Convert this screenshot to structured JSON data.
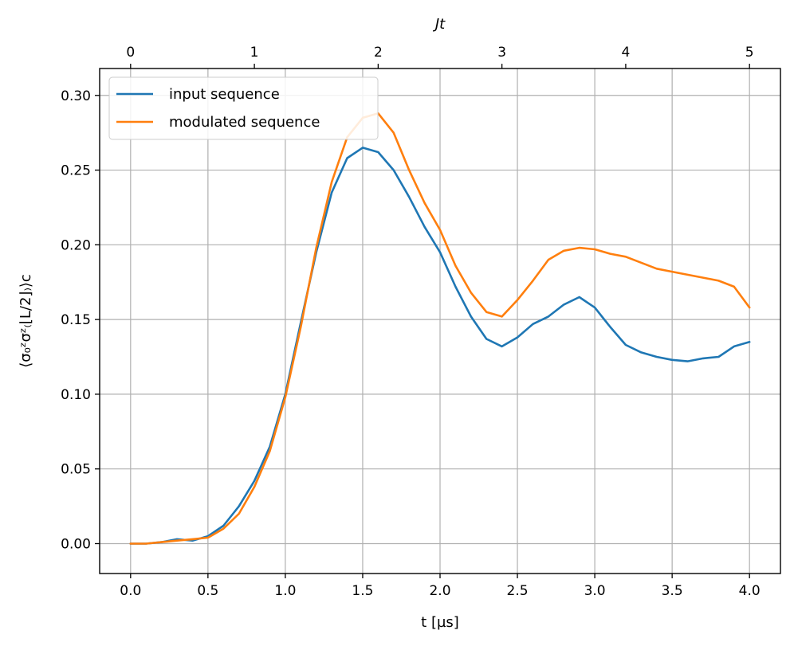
{
  "chart_data": {
    "type": "line",
    "xlabel": "t [µs]",
    "ylabel": "⟨σ₀ᶻσᶻ₍⌊L/2⌋₎⟩c",
    "top_xlabel": "Jt",
    "xlim": [
      -0.2,
      4.2
    ],
    "ylim": [
      -0.02,
      0.318
    ],
    "top_xlim": [
      -0.25,
      5.25
    ],
    "x_ticks": [
      0.0,
      0.5,
      1.0,
      1.5,
      2.0,
      2.5,
      3.0,
      3.5,
      4.0
    ],
    "x_tick_labels": [
      "0.0",
      "0.5",
      "1.0",
      "1.5",
      "2.0",
      "2.5",
      "3.0",
      "3.5",
      "4.0"
    ],
    "y_ticks": [
      0.0,
      0.05,
      0.1,
      0.15,
      0.2,
      0.25,
      0.3
    ],
    "y_tick_labels": [
      "0.00",
      "0.05",
      "0.10",
      "0.15",
      "0.20",
      "0.25",
      "0.30"
    ],
    "top_x_ticks": [
      0,
      1,
      2,
      3,
      4,
      5
    ],
    "top_x_tick_labels": [
      "0",
      "1",
      "2",
      "3",
      "4",
      "5"
    ],
    "grid": true,
    "legend_position": "top-left",
    "series": [
      {
        "name": "input sequence",
        "color": "#1f77b4",
        "x": [
          0.0,
          0.1,
          0.2,
          0.3,
          0.4,
          0.5,
          0.6,
          0.7,
          0.8,
          0.9,
          1.0,
          1.1,
          1.2,
          1.3,
          1.4,
          1.5,
          1.6,
          1.7,
          1.8,
          1.9,
          2.0,
          2.1,
          2.2,
          2.3,
          2.4,
          2.5,
          2.6,
          2.7,
          2.8,
          2.9,
          3.0,
          3.1,
          3.2,
          3.3,
          3.4,
          3.5,
          3.6,
          3.7,
          3.8,
          3.9,
          4.0
        ],
        "y": [
          0.0,
          0.0,
          0.001,
          0.003,
          0.002,
          0.005,
          0.012,
          0.025,
          0.042,
          0.065,
          0.1,
          0.148,
          0.195,
          0.235,
          0.258,
          0.265,
          0.262,
          0.25,
          0.232,
          0.212,
          0.195,
          0.172,
          0.152,
          0.137,
          0.132,
          0.138,
          0.147,
          0.152,
          0.16,
          0.165,
          0.158,
          0.145,
          0.133,
          0.128,
          0.125,
          0.123,
          0.122,
          0.124,
          0.125,
          0.132,
          0.135
        ]
      },
      {
        "name": "modulated sequence",
        "color": "#ff7f0e",
        "x": [
          0.0,
          0.1,
          0.2,
          0.3,
          0.4,
          0.5,
          0.6,
          0.7,
          0.8,
          0.9,
          1.0,
          1.1,
          1.2,
          1.3,
          1.4,
          1.5,
          1.6,
          1.7,
          1.8,
          1.9,
          2.0,
          2.1,
          2.2,
          2.3,
          2.4,
          2.5,
          2.6,
          2.7,
          2.8,
          2.9,
          3.0,
          3.1,
          3.2,
          3.3,
          3.4,
          3.5,
          3.6,
          3.7,
          3.8,
          3.9,
          4.0
        ],
        "y": [
          0.0,
          0.0,
          0.001,
          0.002,
          0.003,
          0.004,
          0.01,
          0.02,
          0.038,
          0.062,
          0.098,
          0.145,
          0.198,
          0.242,
          0.272,
          0.285,
          0.288,
          0.275,
          0.25,
          0.228,
          0.21,
          0.186,
          0.168,
          0.155,
          0.152,
          0.163,
          0.176,
          0.19,
          0.196,
          0.198,
          0.197,
          0.194,
          0.192,
          0.188,
          0.184,
          0.182,
          0.18,
          0.178,
          0.176,
          0.172,
          0.158
        ]
      }
    ]
  }
}
